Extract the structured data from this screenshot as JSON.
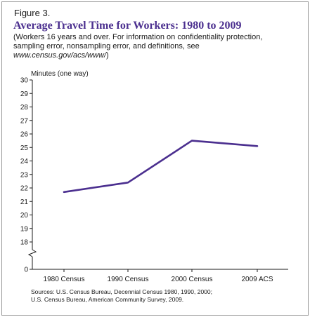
{
  "figure_label": "Figure 3.",
  "subtitle": {
    "text": "(Workers 16 years and over. For information on confidentiality protection, sampling error, nonsampling error, and definitions, see ",
    "link": "www.census.gov/acs/www/",
    "close": ")"
  },
  "sources": {
    "line1": "Sources: U.S. Census Bureau, Decennial Census 1980, 1990, 2000;",
    "line2": "U.S. Census Bureau, American Community Survey, 2009."
  },
  "colors": {
    "title": "#4b2f8f",
    "line": "#4b2f8f",
    "axis": "#1a1a1a"
  },
  "chart_data": {
    "type": "line",
    "title": "Average Travel Time for Workers: 1980 to 2009",
    "ylabel": "Minutes (one way)",
    "xlabel": "",
    "categories": [
      "1980 Census",
      "1990 Census",
      "2000 Census",
      "2009 ACS"
    ],
    "series": [
      {
        "values": [
          21.7,
          22.4,
          25.5,
          25.1
        ]
      }
    ],
    "ylim": [
      18,
      30
    ],
    "y_ticks": [
      18,
      19,
      20,
      21,
      22,
      23,
      24,
      25,
      26,
      27,
      28,
      29,
      30
    ],
    "y_break_tick": 0,
    "axis_break": true,
    "grid": false,
    "legend": "none"
  }
}
